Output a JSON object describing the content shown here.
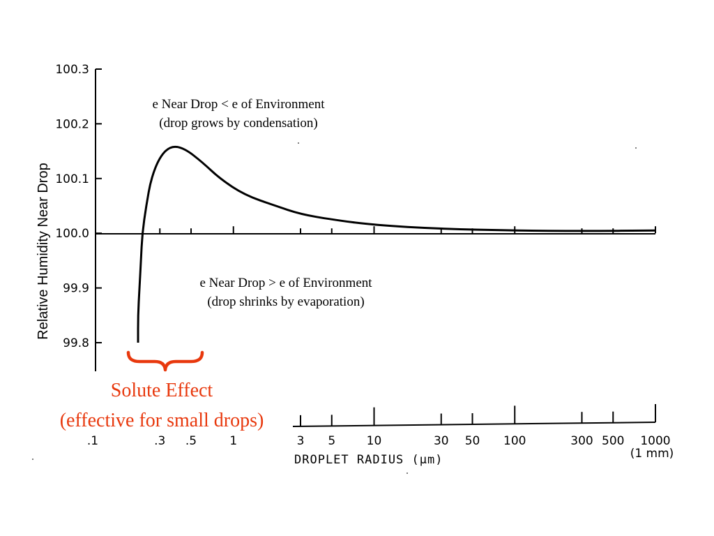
{
  "chart_data": {
    "type": "line",
    "title": "",
    "ylabel": "Relative Humidity Near Drop",
    "xlabel": "DROPLET RADIUS (μm)",
    "x_scale": "log",
    "xlim": [
      0.1,
      1000
    ],
    "ylim": [
      99.8,
      100.3
    ],
    "reference_line": 100.0,
    "y_ticks": [
      {
        "value": 100.3,
        "label": "100.3"
      },
      {
        "value": 100.2,
        "label": "100.2"
      },
      {
        "value": 100.1,
        "label": "100.1"
      },
      {
        "value": 100.0,
        "label": "100.0"
      },
      {
        "value": 99.9,
        "label": "99.9"
      },
      {
        "value": 99.8,
        "label": "99.8"
      }
    ],
    "x_ticks_labeled": [
      {
        "value": 0.1,
        "label": ".1"
      },
      {
        "value": 0.3,
        "label": ".3"
      },
      {
        "value": 0.5,
        "label": ".5"
      },
      {
        "value": 1,
        "label": "1"
      },
      {
        "value": 3,
        "label": "3"
      },
      {
        "value": 5,
        "label": "5"
      },
      {
        "value": 10,
        "label": "10"
      },
      {
        "value": 30,
        "label": "30"
      },
      {
        "value": 50,
        "label": "50"
      },
      {
        "value": 100,
        "label": "100"
      },
      {
        "value": 300,
        "label": "300"
      },
      {
        "value": 500,
        "label": "500"
      },
      {
        "value": 1000,
        "label": "1000"
      }
    ],
    "x_tick_note": "(1 mm)",
    "series": [
      {
        "points": [
          [
            0.21,
            99.8
          ],
          [
            0.21,
            99.85
          ],
          [
            0.215,
            99.9
          ],
          [
            0.22,
            99.95
          ],
          [
            0.225,
            100.0
          ],
          [
            0.24,
            100.05
          ],
          [
            0.26,
            100.1
          ],
          [
            0.3,
            100.14
          ],
          [
            0.36,
            100.16
          ],
          [
            0.45,
            100.155
          ],
          [
            0.6,
            100.13
          ],
          [
            0.8,
            100.1
          ],
          [
            1.2,
            100.07
          ],
          [
            2,
            100.05
          ],
          [
            3,
            100.035
          ],
          [
            5,
            100.025
          ],
          [
            10,
            100.015
          ],
          [
            30,
            100.008
          ],
          [
            100,
            100.005
          ],
          [
            300,
            100.004
          ],
          [
            1000,
            100.005
          ]
        ]
      }
    ],
    "annotations": {
      "upper_line1": "e Near Drop < e of Environment",
      "upper_line2": "(drop grows by condensation)",
      "lower_line1": "e Near Drop > e of Environment",
      "lower_line2": "(drop shrinks by evaporation)",
      "solute_line1": "Solute Effect",
      "solute_line2": "(effective for small drops)"
    },
    "colors": {
      "curve": "#000000",
      "solute_effect": "#e8380d"
    }
  }
}
